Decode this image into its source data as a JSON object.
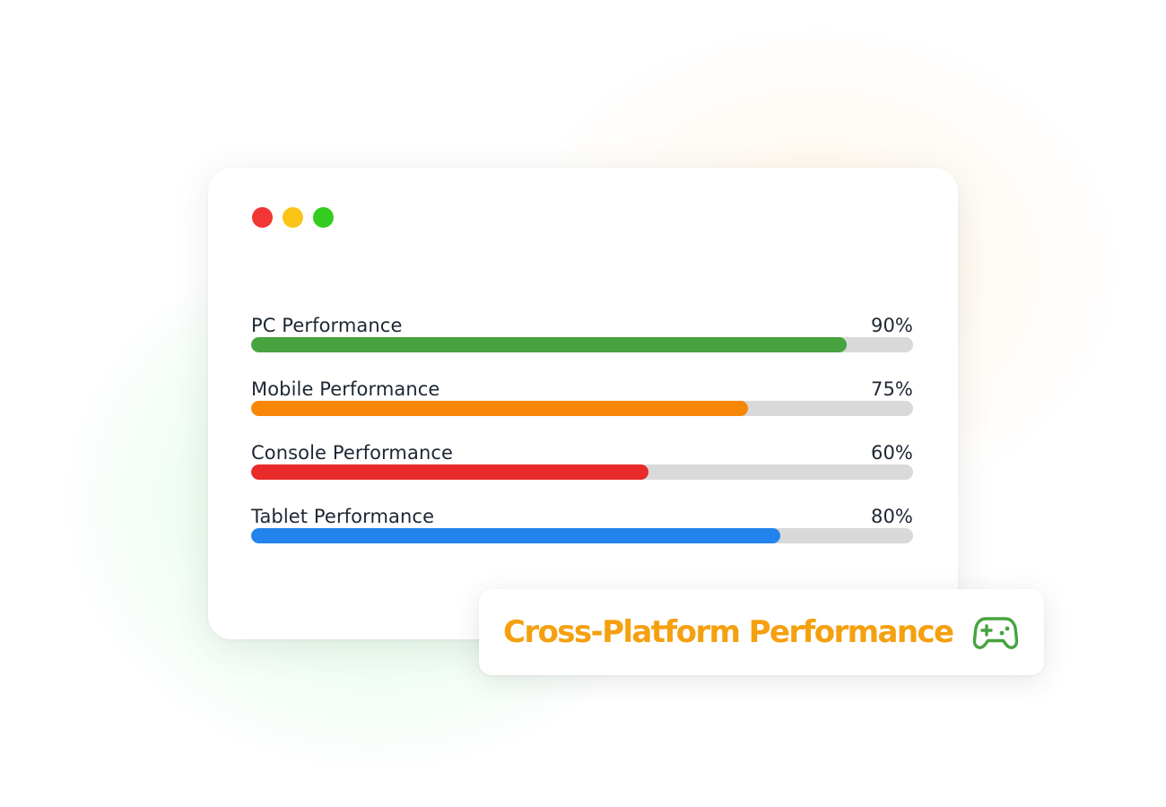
{
  "window": {
    "controls": [
      {
        "name": "close",
        "color": "#f23535"
      },
      {
        "name": "minimize",
        "color": "#fbc417"
      },
      {
        "name": "maximize",
        "color": "#33cc1f"
      }
    ]
  },
  "metrics": [
    {
      "label": "PC Performance",
      "value_text": "90%",
      "percent": 90,
      "color": "#47a33f"
    },
    {
      "label": "Mobile Performance",
      "value_text": "75%",
      "percent": 75,
      "color": "#f88708"
    },
    {
      "label": "Console Performance",
      "value_text": "60%",
      "percent": 60,
      "color": "#e82a2a"
    },
    {
      "label": "Tablet Performance",
      "value_text": "80%",
      "percent": 80,
      "color": "#2383ed"
    }
  ],
  "badge": {
    "title": "Cross-Platform Performance",
    "title_color": "#f5a00f",
    "icon": "gamepad-icon",
    "icon_color": "#47a33f"
  },
  "colors": {
    "track": "#d9d9d9",
    "text": "#1d2733"
  }
}
